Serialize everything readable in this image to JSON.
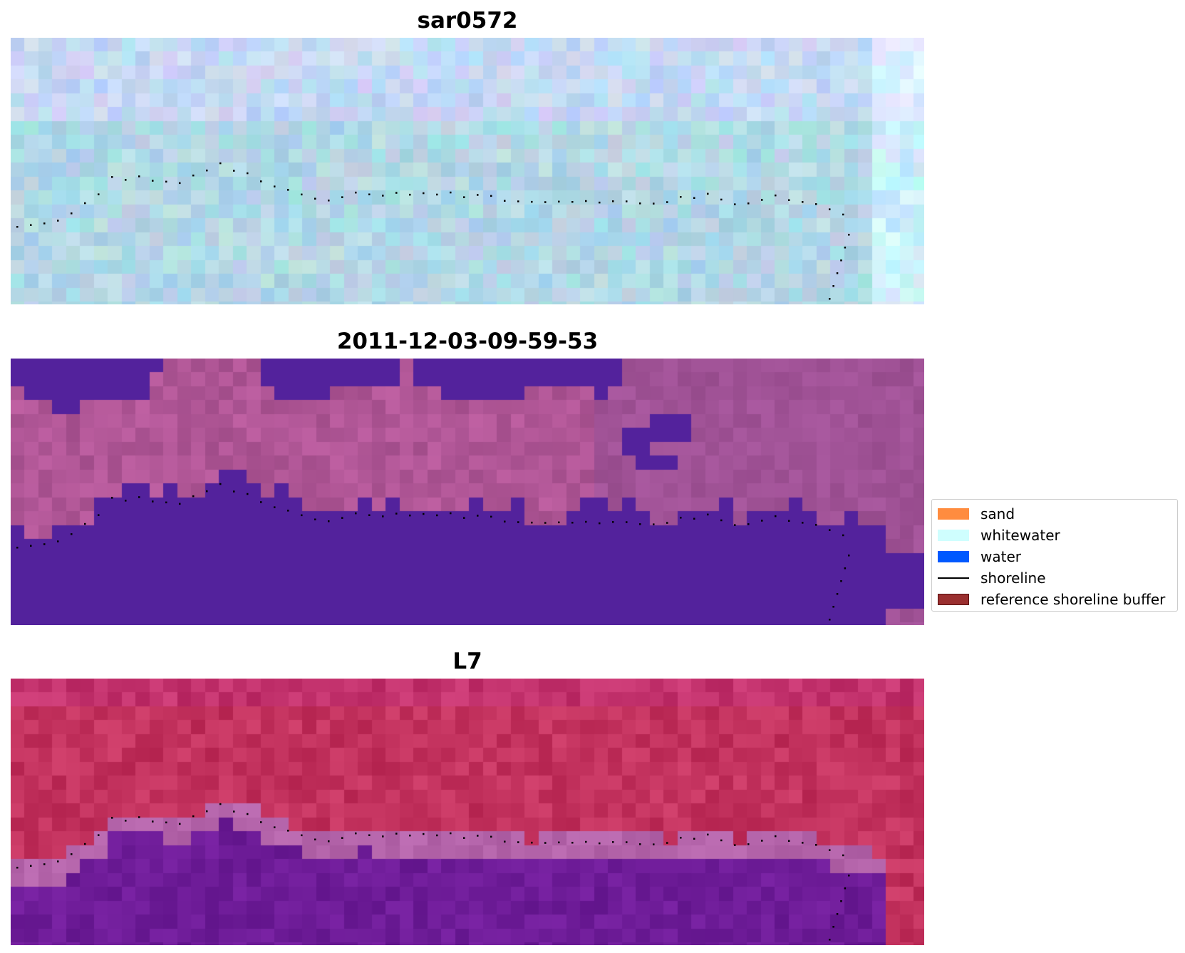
{
  "panels": [
    {
      "title": "sar0572",
      "kind": "sar"
    },
    {
      "title": "2011-12-03-09-59-53",
      "kind": "classified"
    },
    {
      "title": "L7",
      "kind": "landsat"
    }
  ],
  "legend": {
    "items": [
      {
        "label": "sand",
        "type": "patch",
        "color": "#ff8c3f",
        "edge": "#ff8c3f"
      },
      {
        "label": "whitewater",
        "type": "patch",
        "color": "#cffefe",
        "edge": "#cffefe"
      },
      {
        "label": "water",
        "type": "patch",
        "color": "#0059ff",
        "edge": "#0059ff"
      },
      {
        "label": "shoreline",
        "type": "line",
        "color": "#000000"
      },
      {
        "label": "reference shoreline buffer",
        "type": "patch",
        "color": "#9a2f2f",
        "edge": "#5a1010"
      }
    ]
  },
  "colors": {
    "water_class": "#53229c",
    "sar_base": "#b2d8e6",
    "landsat_land": "#c3325e",
    "landsat_water": "#6e1c98",
    "shoreline_points": "#000000"
  }
}
